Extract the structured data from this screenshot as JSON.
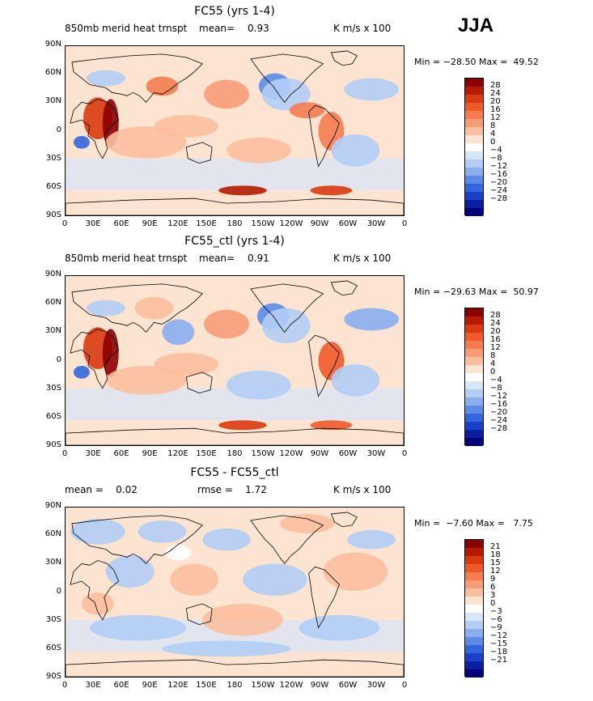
{
  "season_label": "JJA",
  "panels": [
    {
      "title": "FC55 (yrs 1-4)",
      "header_left": "850mb merid heat trnspt",
      "header_mean_label": "mean=",
      "header_mean_value": "0.93",
      "header_units": "K m/s x 100",
      "minmax": "Min = −28.50 Max =  49.52",
      "colorbar_labels": [
        "28",
        "24",
        "20",
        "16",
        "12",
        "8",
        "4",
        "0",
        "−4",
        "−8",
        "−12",
        "−16",
        "−20",
        "−24",
        "−28"
      ]
    },
    {
      "title": "FC55_ctl (yrs 1-4)",
      "header_left": "850mb merid heat trnspt",
      "header_mean_label": "mean=",
      "header_mean_value": "0.91",
      "header_units": "K m/s x 100",
      "minmax": "Min = −29.63 Max =  50.97",
      "colorbar_labels": [
        "28",
        "24",
        "20",
        "16",
        "12",
        "8",
        "4",
        "0",
        "−4",
        "−8",
        "−12",
        "−16",
        "−20",
        "−24",
        "−28"
      ]
    },
    {
      "title": "FC55 - FC55_ctl",
      "header_left": "mean =    0.02",
      "header_mid": "rmse =    1.72",
      "header_units": "K m/s x 100",
      "minmax": "Min =  −7.60 Max =   7.75",
      "colorbar_labels": [
        "21",
        "18",
        "15",
        "12",
        "9",
        "6",
        "3",
        "0",
        "−3",
        "−6",
        "−9",
        "−12",
        "−15",
        "−18",
        "−21"
      ]
    }
  ],
  "lat_labels": [
    "90N",
    "60N",
    "30N",
    "0",
    "30S",
    "60S",
    "90S"
  ],
  "lon_labels": [
    "0",
    "30E",
    "60E",
    "90E",
    "120E",
    "150E",
    "180",
    "150W",
    "120W",
    "90W",
    "60W",
    "30W",
    "0"
  ],
  "colors": {
    "colorbar": [
      "#8b0000",
      "#b51b00",
      "#d93a10",
      "#ee5a2a",
      "#f47c50",
      "#f79c78",
      "#fbbf9f",
      "#fde4d0",
      "#ffffff",
      "#d6e6fb",
      "#b3cdf5",
      "#8aaeef",
      "#5e8be6",
      "#3366dd",
      "#1a40c8",
      "#0a1e9e",
      "#00007a"
    ],
    "land_outline": "#000000"
  }
}
